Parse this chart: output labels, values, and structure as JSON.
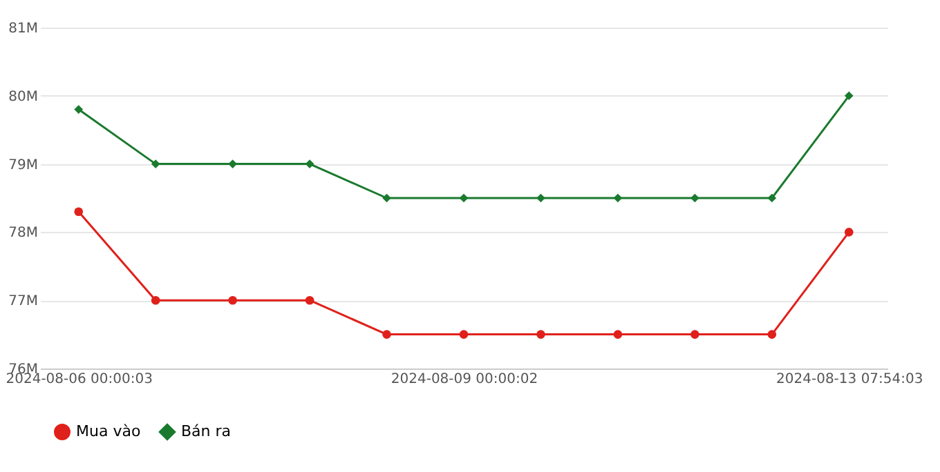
{
  "chart_data": {
    "type": "line",
    "categories": [
      "2024-08-06 00:00:03",
      null,
      null,
      null,
      null,
      "2024-08-09 00:00:02",
      null,
      null,
      null,
      null,
      "2024-08-13 07:54:03"
    ],
    "series": [
      {
        "name": "Mua vào",
        "color": "#e0201b",
        "marker": "circle",
        "values": [
          78.3,
          77,
          77,
          77,
          76.5,
          76.5,
          76.5,
          76.5,
          76.5,
          76.5,
          78
        ]
      },
      {
        "name": "Bán ra",
        "color": "#1a7a2e",
        "marker": "diamond",
        "values": [
          79.8,
          79,
          79,
          79,
          78.5,
          78.5,
          78.5,
          78.5,
          78.5,
          78.5,
          80
        ]
      }
    ],
    "ylim": [
      76,
      81
    ],
    "yticks": [
      {
        "value": 76,
        "label": "76M"
      },
      {
        "value": 77,
        "label": "77M"
      },
      {
        "value": 78,
        "label": "78M"
      },
      {
        "value": 79,
        "label": "79M"
      },
      {
        "value": 80,
        "label": "80M"
      },
      {
        "value": 81,
        "label": "81M"
      }
    ],
    "grid": "y",
    "legend": "bottom",
    "line_style": "solid"
  }
}
